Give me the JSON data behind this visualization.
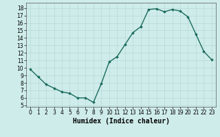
{
  "x": [
    0,
    1,
    2,
    3,
    4,
    5,
    6,
    7,
    8,
    9,
    10,
    11,
    12,
    13,
    14,
    15,
    16,
    17,
    18,
    19,
    20,
    21,
    22,
    23
  ],
  "y": [
    9.8,
    8.8,
    7.8,
    7.3,
    6.8,
    6.6,
    6.0,
    6.0,
    5.4,
    7.9,
    10.8,
    11.5,
    13.1,
    14.7,
    15.5,
    17.8,
    17.9,
    17.5,
    17.8,
    17.6,
    16.8,
    14.5,
    12.2,
    11.1
  ],
  "xlabel": "Humidex (Indice chaleur)",
  "ylim": [
    4.8,
    18.7
  ],
  "xlim": [
    -0.5,
    23.5
  ],
  "yticks": [
    5,
    6,
    7,
    8,
    9,
    10,
    11,
    12,
    13,
    14,
    15,
    16,
    17,
    18
  ],
  "xticks": [
    0,
    1,
    2,
    3,
    4,
    5,
    6,
    7,
    8,
    9,
    10,
    11,
    12,
    13,
    14,
    15,
    16,
    17,
    18,
    19,
    20,
    21,
    22,
    23
  ],
  "line_color": "#1a6b5a",
  "marker": "D",
  "marker_size": 1.8,
  "line_width": 1.0,
  "bg_color": "#ceecea",
  "grid_color": "#b8d8d5",
  "fig_bg": "#ceecea",
  "tick_fontsize": 5.5,
  "xlabel_fontsize": 7.0
}
